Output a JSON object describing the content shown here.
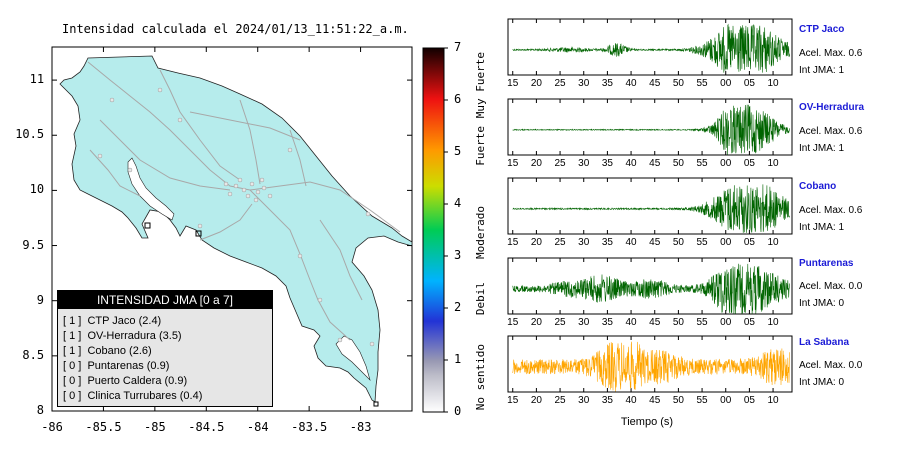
{
  "chart_data": [
    {
      "type": "map",
      "title": "Intensidad calculada el 2024/01/13_11:51:22_a.m.",
      "x_ticks": [
        "-86",
        "-85.5",
        "-85",
        "-84.5",
        "-84",
        "-83.5",
        "-83"
      ],
      "y_ticks": [
        "11",
        "10.5",
        "10",
        "9.5",
        "9",
        "8.5",
        "8"
      ],
      "xlim": [
        -86,
        -82.5
      ],
      "ylim": [
        8,
        11.3
      ],
      "colorbar": {
        "ticks": [
          "0",
          "1",
          "2",
          "3",
          "4",
          "5",
          "6",
          "7"
        ],
        "range": [
          0,
          7
        ],
        "category_labels": [
          "No sentido",
          "Debil",
          "Moderado",
          "Fuerte",
          "Muy Fuerte"
        ],
        "colors": [
          "#ffffff",
          "#9999b3",
          "#2233d6",
          "#00b3ff",
          "#00cc55",
          "#ccdd00",
          "#ff9900",
          "#ee1111",
          "#110000"
        ]
      },
      "land_color": "#b6ecec",
      "legend": {
        "header": "INTENSIDAD JMA [0 a 7]",
        "rows": [
          "[ 1 ]  CTP Jaco (2.4)",
          "[ 1 ]  OV-Herradura (3.5)",
          "[ 1 ]  Cobano (2.6)",
          "[ 0 ]  Puntarenas (0.9)",
          "[ 0 ]  Puerto Caldera (0.9)",
          "[ 0 ]  Clinica Turrubares (0.4)"
        ]
      }
    },
    {
      "type": "line",
      "xlabel": "Tiempo (s)",
      "x_tick_labels": [
        "15",
        "20",
        "25",
        "30",
        "35",
        "40",
        "45",
        "50",
        "55",
        "00",
        "05",
        "10"
      ],
      "series": [
        {
          "name": "CTP Jaco",
          "accel": "Acel. Max. 0.6",
          "jma": "Int JMA: 1",
          "color": "#006400",
          "bursts": [
            {
              "t": 37,
              "a": 0.25,
              "w": 1.5
            },
            {
              "t": 27,
              "a": 0.08,
              "w": 3
            },
            {
              "t": 62,
              "a": 0.45,
              "w": 4
            },
            {
              "t": 65,
              "a": 1.0,
              "w": 5
            }
          ],
          "base": 0.03
        },
        {
          "name": "OV-Herradura",
          "accel": "Acel. Max. 0.6",
          "jma": "Int JMA: 1",
          "color": "#006400",
          "bursts": [
            {
              "t": 61,
              "a": 0.5,
              "w": 2
            },
            {
              "t": 65,
              "a": 1.0,
              "w": 4
            }
          ],
          "base": 0.02
        },
        {
          "name": "Cobano",
          "accel": "Acel. Max. 0.6",
          "jma": "Int JMA: 1",
          "color": "#006400",
          "bursts": [
            {
              "t": 62,
              "a": 0.4,
              "w": 4
            },
            {
              "t": 66,
              "a": 1.0,
              "w": 5
            }
          ],
          "base": 0.03
        },
        {
          "name": "Puntarenas",
          "accel": "Acel. Max. 0.0",
          "jma": "Int JMA: 0",
          "color": "#006400",
          "bursts": [
            {
              "t": 34,
              "a": 0.45,
              "w": 3
            },
            {
              "t": 44,
              "a": 0.3,
              "w": 3
            },
            {
              "t": 27,
              "a": 0.2,
              "w": 3
            },
            {
              "t": 62,
              "a": 1.0,
              "w": 3
            },
            {
              "t": 66,
              "a": 0.7,
              "w": 5
            }
          ],
          "base": 0.12
        },
        {
          "name": "La Sabana",
          "accel": "Acel. Max. 0.0",
          "jma": "Int JMA: 0",
          "color": "#ffa500",
          "bursts": [
            {
              "t": 39,
              "a": 1.0,
              "w": 2
            },
            {
              "t": 36,
              "a": 0.5,
              "w": 3
            },
            {
              "t": 46,
              "a": 0.4,
              "w": 3
            },
            {
              "t": 71,
              "a": 0.5,
              "w": 3
            }
          ],
          "base": 0.3
        }
      ]
    }
  ]
}
